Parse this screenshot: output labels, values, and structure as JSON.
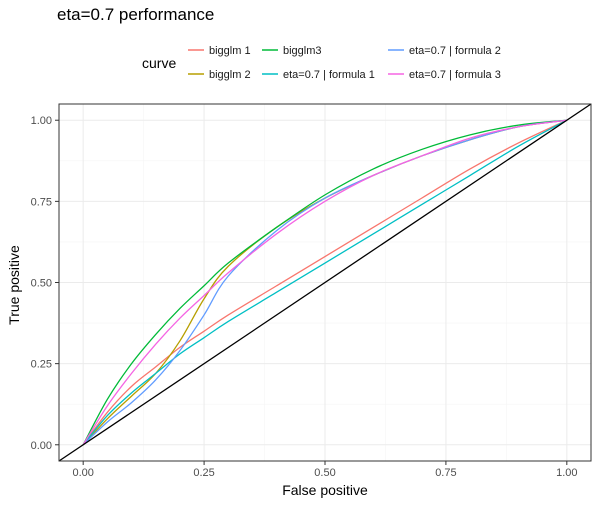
{
  "chart_data": {
    "type": "line",
    "title": "eta=0.7 performance",
    "xlabel": "False positive",
    "ylabel": "True positive",
    "xlim": [
      0,
      1
    ],
    "ylim": [
      0,
      1
    ],
    "x_ticks": [
      "0.00",
      "0.25",
      "0.50",
      "0.75",
      "1.00"
    ],
    "y_ticks": [
      "0.00",
      "0.25",
      "0.50",
      "0.75",
      "1.00"
    ],
    "grid": true,
    "legend": {
      "title": "curve",
      "position": "top"
    },
    "series": [
      {
        "name": "bigglm 1",
        "color": "#F8766D",
        "x": [
          0,
          0.05,
          0.1,
          0.15,
          0.2,
          0.25,
          0.3,
          0.4,
          0.5,
          0.6,
          0.7,
          0.8,
          0.9,
          1.0
        ],
        "y": [
          0,
          0.1,
          0.18,
          0.24,
          0.3,
          0.35,
          0.4,
          0.49,
          0.58,
          0.67,
          0.76,
          0.85,
          0.93,
          1.0
        ]
      },
      {
        "name": "bigglm 2",
        "color": "#B79F00",
        "x": [
          0,
          0.05,
          0.1,
          0.15,
          0.2,
          0.25,
          0.3,
          0.4,
          0.5,
          0.6,
          0.7,
          0.8,
          0.9,
          1.0
        ],
        "y": [
          0,
          0.08,
          0.15,
          0.22,
          0.32,
          0.45,
          0.55,
          0.67,
          0.76,
          0.83,
          0.89,
          0.94,
          0.98,
          1.0
        ]
      },
      {
        "name": "bigglm3",
        "color": "#00BA38",
        "x": [
          0,
          0.05,
          0.1,
          0.15,
          0.2,
          0.25,
          0.3,
          0.4,
          0.5,
          0.6,
          0.7,
          0.8,
          0.9,
          1.0
        ],
        "y": [
          0,
          0.14,
          0.25,
          0.34,
          0.42,
          0.49,
          0.56,
          0.67,
          0.77,
          0.85,
          0.91,
          0.955,
          0.985,
          1.0
        ]
      },
      {
        "name": "eta=0.7 | formula 1",
        "color": "#00BFC4",
        "x": [
          0,
          0.05,
          0.1,
          0.15,
          0.2,
          0.25,
          0.3,
          0.4,
          0.5,
          0.6,
          0.7,
          0.8,
          0.9,
          1.0
        ],
        "y": [
          0,
          0.09,
          0.16,
          0.22,
          0.28,
          0.33,
          0.38,
          0.47,
          0.56,
          0.65,
          0.74,
          0.83,
          0.92,
          1.0
        ]
      },
      {
        "name": "eta=0.7 | formula 2",
        "color": "#619CFF",
        "x": [
          0,
          0.05,
          0.1,
          0.15,
          0.2,
          0.25,
          0.3,
          0.4,
          0.5,
          0.6,
          0.7,
          0.8,
          0.9,
          1.0
        ],
        "y": [
          0,
          0.07,
          0.13,
          0.2,
          0.29,
          0.4,
          0.52,
          0.66,
          0.76,
          0.83,
          0.89,
          0.94,
          0.98,
          1.0
        ]
      },
      {
        "name": "eta=0.7 | formula 3",
        "color": "#F564E3",
        "x": [
          0,
          0.05,
          0.1,
          0.15,
          0.2,
          0.25,
          0.3,
          0.4,
          0.5,
          0.6,
          0.7,
          0.8,
          0.9,
          1.0
        ],
        "y": [
          0,
          0.12,
          0.22,
          0.31,
          0.39,
          0.46,
          0.53,
          0.65,
          0.75,
          0.83,
          0.89,
          0.945,
          0.98,
          1.0
        ]
      }
    ],
    "reference_line": {
      "color": "#000000",
      "x": [
        -0.05,
        1.05
      ],
      "y": [
        -0.05,
        1.05
      ]
    }
  }
}
